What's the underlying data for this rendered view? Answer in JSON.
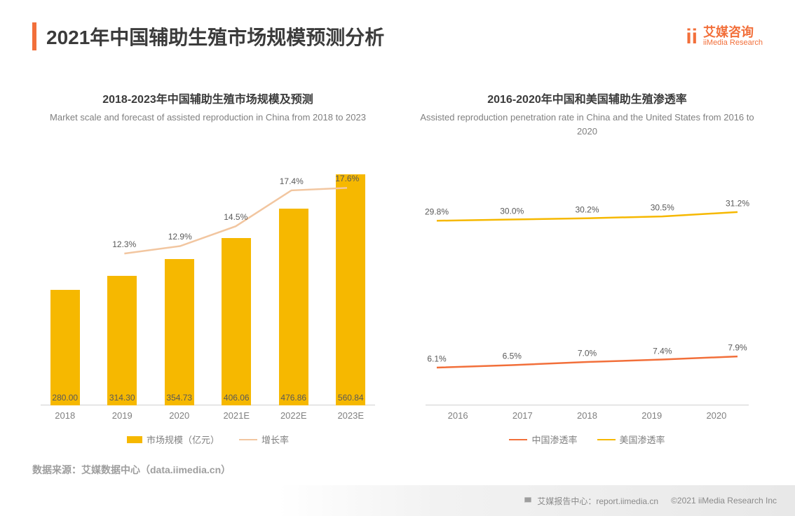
{
  "header": {
    "title": "2021年中国辅助生殖市场规模预测分析",
    "logo_cn": "艾媒咨询",
    "logo_en": "iiMedia Research"
  },
  "left_chart": {
    "type": "bar+line",
    "title_cn": "2018-2023年中国辅助生殖市场规模及预测",
    "title_en": "Market scale and forecast of assisted reproduction in China from 2018 to 2023",
    "categories": [
      "2018",
      "2019",
      "2020",
      "2021E",
      "2022E",
      "2023E"
    ],
    "bar_values": [
      280.0,
      314.3,
      354.73,
      406.06,
      476.86,
      560.84
    ],
    "bar_value_labels": [
      "280.00",
      "314.30",
      "354.73",
      "406.06",
      "476.86",
      "560.84"
    ],
    "bar_color": "#f6b800",
    "bar_width": 0.6,
    "y_max": 600,
    "growth_values": [
      null,
      12.3,
      12.9,
      14.5,
      17.4,
      17.6
    ],
    "growth_labels": [
      "",
      "12.3%",
      "12.9%",
      "14.5%",
      "17.4%",
      "17.6%"
    ],
    "growth_y_max": 20,
    "line_color": "#f2c6a0",
    "legend_bar": "市场规模（亿元）",
    "legend_line": "增长率",
    "x_label_color": "#808080",
    "value_label_fontsize": 12,
    "baseline_color": "#d0d0d0"
  },
  "right_chart": {
    "type": "line",
    "title_cn": "2016-2020年中国和美国辅助生殖渗透率",
    "title_en": "Assisted reproduction penetration rate in China and the United States from 2016 to 2020",
    "categories": [
      "2016",
      "2017",
      "2018",
      "2019",
      "2020"
    ],
    "series": [
      {
        "name": "中国渗透率",
        "color": "#f26f3a",
        "values": [
          6.1,
          6.5,
          7.0,
          7.4,
          7.9
        ],
        "labels": [
          "6.1%",
          "6.5%",
          "7.0%",
          "7.4%",
          "7.9%"
        ]
      },
      {
        "name": "美国渗透率",
        "color": "#f6b800",
        "values": [
          29.8,
          30.0,
          30.2,
          30.5,
          31.2
        ],
        "labels": [
          "29.8%",
          "30.0%",
          "30.2%",
          "30.5%",
          "31.2%"
        ]
      }
    ],
    "y_max": 40,
    "value_label_fontsize": 12,
    "baseline_color": "#d0d0d0"
  },
  "source": "数据来源：艾媒数据中心（data.iimedia.cn）",
  "footer": {
    "report_center": "艾媒报告中心：report.iimedia.cn",
    "copyright": "©2021   iiMedia Research  Inc"
  },
  "colors": {
    "accent": "#f26f3a",
    "title_text": "#3b3b3b",
    "body_text": "#595959",
    "muted_text": "#808080",
    "background": "#ffffff"
  }
}
